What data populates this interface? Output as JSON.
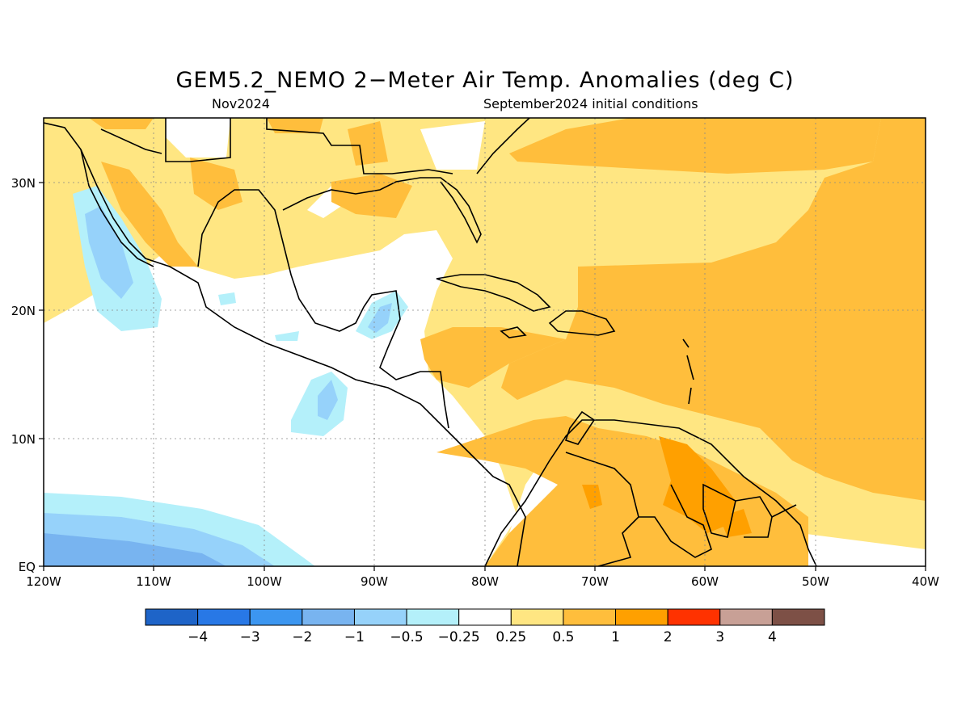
{
  "title": "GEM5.2_NEMO 2−Meter Air Temp. Anomalies (deg C)",
  "subtitle_left": "Nov2024",
  "subtitle_right": "September2024 initial conditions",
  "map": {
    "lat_labels": [
      "30N",
      "20N",
      "10N",
      "EQ"
    ],
    "lon_labels": [
      "120W",
      "110W",
      "100W",
      "90W",
      "80W",
      "70W",
      "60W",
      "50W",
      "40W"
    ],
    "bounds": {
      "lon": [
        -120,
        -40
      ],
      "lat": [
        0,
        35
      ]
    }
  },
  "colorbar": {
    "colors": [
      "#1e64c8",
      "#2878e6",
      "#3c96f0",
      "#78b4f0",
      "#96d2fa",
      "#b4f0fa",
      "#ffffff",
      "#ffe682",
      "#ffbe3c",
      "#ffa000",
      "#ff3200",
      "#c8a096",
      "#7d5046"
    ],
    "labels": [
      "−4",
      "−3",
      "−2",
      "−1",
      "−0.5",
      "−0.25",
      "0.25",
      "0.5",
      "1",
      "2",
      "3",
      "4"
    ]
  }
}
